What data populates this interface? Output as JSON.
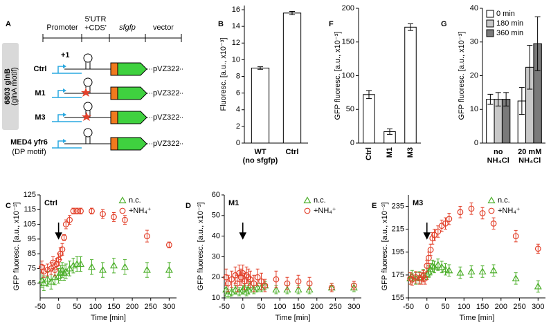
{
  "construct_diagram": {
    "panel": "A",
    "columns": [
      "Promoter",
      "5'UTR\n+CDS'",
      "sfgfp",
      "vector"
    ],
    "start_site": "+1",
    "group": "6803 glnB",
    "group_note": "(glnA motif)",
    "rows": [
      {
        "label": "Ctrl",
        "vector": "pVZ322"
      },
      {
        "label": "M1",
        "vector": "pVZ322"
      },
      {
        "label": "M3",
        "vector": "pVZ322"
      },
      {
        "label": "MED4 yfr6",
        "note": "(DP motif)",
        "vector": "pVZ322"
      }
    ]
  },
  "chart_data": [
    {
      "panel": "B",
      "type": "bar",
      "categories": [
        "WT\n(no sfgfp)",
        "Ctrl"
      ],
      "values": [
        9.0,
        15.6
      ],
      "errors": [
        0.15,
        0.2
      ],
      "color": "#ffffff",
      "ylabel": "Fluoresc. [a.u., x10⁻³]",
      "ylim": [
        0,
        16.5
      ],
      "yticks": [
        0,
        2,
        4,
        6,
        8,
        10,
        12,
        14,
        16
      ]
    },
    {
      "panel": "F",
      "type": "bar",
      "categories": [
        "Ctrl",
        "M1",
        "M3"
      ],
      "values": [
        72,
        17,
        172
      ],
      "errors": [
        6,
        4,
        5
      ],
      "color": "#ffffff",
      "ylabel": "GFP fluoresc. [a.u., x10⁻³]",
      "ylim": [
        0,
        200
      ],
      "yticks": [
        0,
        50,
        100,
        150,
        200
      ]
    },
    {
      "panel": "G",
      "type": "bar",
      "categories": [
        "no\nNH₄Cl",
        "20 mM\nNH₄Cl"
      ],
      "ylabel": "GFP fluoresc. [a.u., x10⁻³]",
      "ylim": [
        0,
        40
      ],
      "yticks": [
        0,
        10,
        20,
        30,
        40
      ],
      "legend": "upper left",
      "series": [
        {
          "name": "0 min",
          "color": "#ffffff",
          "values": [
            13,
            12.5
          ],
          "errors": [
            1.5,
            4
          ]
        },
        {
          "name": "180 min",
          "color": "#c8c8c8",
          "values": [
            13,
            22.5
          ],
          "errors": [
            2,
            6.5
          ]
        },
        {
          "name": "360 min",
          "color": "#7a7a7a",
          "values": [
            13,
            29.5
          ],
          "errors": [
            2,
            8
          ]
        }
      ]
    },
    {
      "panel": "C",
      "type": "scatter",
      "title": "Ctrl",
      "xlabel": "Time [min]",
      "ylabel": "GFP fluoresc. [a.u., x10⁻³]",
      "xlim": [
        -50,
        320
      ],
      "xticks": [
        -50,
        0,
        50,
        100,
        150,
        200,
        250,
        300
      ],
      "ylim": [
        55,
        125
      ],
      "yticks": [
        65,
        75,
        85,
        95,
        105,
        115,
        125
      ],
      "arrow_x": 0,
      "legend": "upper right",
      "series": [
        {
          "name": "n.c.",
          "color": "#4caf2a",
          "marker": "triangle",
          "x": [
            -45,
            -40,
            -30,
            -20,
            -10,
            0,
            5,
            10,
            15,
            20,
            30,
            40,
            50,
            60,
            90,
            120,
            150,
            180,
            240,
            300
          ],
          "values": [
            67,
            65,
            68,
            66,
            69,
            70,
            72,
            74,
            72,
            73,
            75,
            77,
            78,
            78,
            76,
            74,
            77,
            76,
            74,
            74
          ],
          "errors": [
            5,
            5,
            5,
            5,
            5,
            5,
            5,
            5,
            5,
            5,
            5,
            5,
            5,
            5,
            5,
            5,
            5,
            5,
            5,
            5
          ]
        },
        {
          "name": "+NH₄⁺",
          "color": "#e2402a",
          "marker": "circle",
          "x": [
            -45,
            -40,
            -30,
            -20,
            -15,
            -10,
            -5,
            0,
            5,
            10,
            15,
            20,
            30,
            40,
            50,
            60,
            90,
            120,
            150,
            180,
            240,
            300
          ],
          "values": [
            76,
            73,
            74,
            75,
            79,
            74,
            78,
            81,
            85,
            88,
            96,
            105,
            108,
            114,
            114,
            114,
            114,
            112,
            110,
            108,
            97,
            91
          ],
          "errors": [
            4,
            4,
            4,
            4,
            4,
            4,
            4,
            4,
            4,
            4,
            2,
            3,
            3,
            2,
            2,
            2,
            2,
            3,
            3,
            3,
            4,
            2
          ]
        }
      ]
    },
    {
      "panel": "D",
      "type": "scatter",
      "title": "M1",
      "xlabel": "Time [min]",
      "ylabel": "GFP fluoresc. [a.u., x10⁻³]",
      "xlim": [
        -50,
        320
      ],
      "xticks": [
        -50,
        0,
        50,
        100,
        150,
        200,
        250,
        300
      ],
      "ylim": [
        10,
        60
      ],
      "yticks": [
        10,
        20,
        30,
        40,
        50,
        60
      ],
      "arrow_x": 0,
      "legend": "upper right",
      "series": [
        {
          "name": "n.c.",
          "color": "#4caf2a",
          "marker": "triangle",
          "x": [
            -45,
            -40,
            -30,
            -20,
            -10,
            0,
            5,
            10,
            15,
            20,
            30,
            40,
            50,
            60,
            90,
            120,
            150,
            180,
            240,
            300
          ],
          "values": [
            14,
            12,
            13,
            14,
            13,
            14,
            15,
            13,
            14,
            16,
            14,
            15,
            15,
            16,
            14,
            14,
            14,
            14,
            15,
            15
          ],
          "errors": [
            2,
            2,
            2,
            2,
            2,
            2,
            2,
            2,
            2,
            2,
            2,
            2,
            2,
            2,
            2,
            2,
            2,
            2,
            2,
            2
          ]
        },
        {
          "name": "+NH₄⁺",
          "color": "#e2402a",
          "marker": "circle",
          "x": [
            -45,
            -40,
            -30,
            -20,
            -15,
            -10,
            -5,
            0,
            5,
            10,
            15,
            20,
            30,
            40,
            50,
            60,
            90,
            120,
            150,
            180,
            240,
            300
          ],
          "values": [
            20,
            17,
            19,
            21,
            17,
            22,
            20,
            22,
            18,
            21,
            20,
            19,
            17,
            20,
            18,
            16,
            19,
            17,
            18,
            17,
            15,
            16
          ],
          "errors": [
            4,
            4,
            4,
            4,
            4,
            4,
            4,
            4,
            4,
            4,
            4,
            4,
            4,
            4,
            4,
            3,
            4,
            3,
            3,
            3,
            2,
            2
          ]
        }
      ]
    },
    {
      "panel": "E",
      "type": "scatter",
      "title": "M3",
      "xlabel": "Time [min]",
      "ylabel": "GFP fluoresc. [a.u., x10⁻³]",
      "xlim": [
        -50,
        320
      ],
      "xticks": [
        -50,
        0,
        50,
        100,
        150,
        200,
        250,
        300
      ],
      "ylim": [
        155,
        245
      ],
      "yticks": [
        155,
        175,
        195,
        215,
        235
      ],
      "arrow_x": 0,
      "legend": "upper right",
      "series": [
        {
          "name": "n.c.",
          "color": "#4caf2a",
          "marker": "triangle",
          "x": [
            -45,
            -40,
            -30,
            -20,
            -10,
            0,
            5,
            10,
            15,
            20,
            30,
            40,
            50,
            60,
            90,
            120,
            150,
            180,
            240,
            300
          ],
          "values": [
            172,
            174,
            172,
            173,
            175,
            176,
            178,
            180,
            183,
            182,
            184,
            182,
            180,
            179,
            177,
            178,
            178,
            179,
            172,
            165
          ],
          "errors": [
            5,
            5,
            5,
            5,
            5,
            5,
            5,
            5,
            5,
            5,
            5,
            5,
            5,
            5,
            5,
            5,
            5,
            5,
            5,
            5
          ]
        },
        {
          "name": "+NH₄⁺",
          "color": "#e2402a",
          "marker": "circle",
          "x": [
            -45,
            -40,
            -30,
            -20,
            -15,
            -10,
            -5,
            0,
            5,
            10,
            15,
            20,
            30,
            40,
            50,
            60,
            90,
            120,
            150,
            180,
            240,
            300
          ],
          "values": [
            172,
            171,
            173,
            172,
            172,
            174,
            172,
            183,
            190,
            197,
            207,
            210,
            213,
            218,
            220,
            224,
            230,
            233,
            229,
            220,
            209,
            198
          ],
          "errors": [
            5,
            5,
            5,
            5,
            5,
            5,
            5,
            5,
            5,
            5,
            5,
            5,
            5,
            5,
            5,
            5,
            5,
            5,
            5,
            5,
            5,
            4
          ]
        }
      ]
    }
  ]
}
